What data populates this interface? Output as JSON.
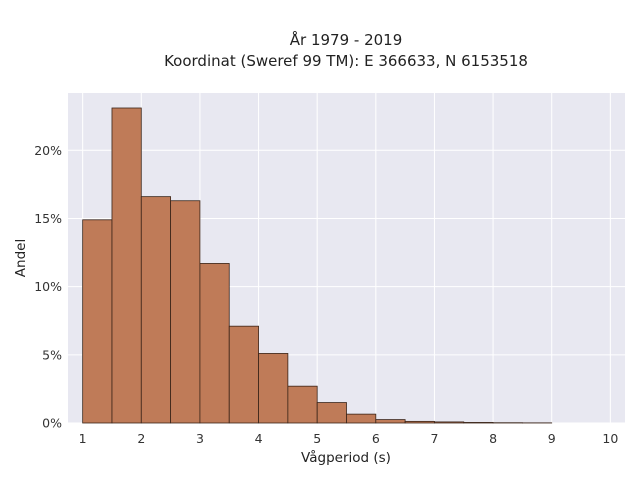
{
  "chart_data": {
    "type": "bar",
    "title_line1": "År 1979 - 2019",
    "title_line2": "Koordinat (Sweref 99 TM): E 366633, N 6153518",
    "xlabel": "Vågperiod (s)",
    "ylabel": "Andel",
    "xlim": [
      0.75,
      10.25
    ],
    "ylim": [
      0,
      0.242
    ],
    "x_ticks": [
      1,
      2,
      3,
      4,
      5,
      6,
      7,
      8,
      9,
      10
    ],
    "x_tick_labels": [
      "1",
      "2",
      "3",
      "4",
      "5",
      "6",
      "7",
      "8",
      "9",
      "10"
    ],
    "y_ticks": [
      0,
      0.05,
      0.1,
      0.15,
      0.2
    ],
    "y_tick_labels": [
      "0%",
      "5%",
      "10%",
      "15%",
      "20%"
    ],
    "grid": true,
    "bin_edges": [
      1,
      1.5,
      2,
      2.5,
      3,
      3.5,
      4,
      4.5,
      5,
      5.5,
      6,
      6.5,
      7,
      7.5,
      8,
      8.5,
      9
    ],
    "values": [
      0.149,
      0.231,
      0.166,
      0.163,
      0.117,
      0.071,
      0.051,
      0.027,
      0.015,
      0.0065,
      0.0025,
      0.0012,
      0.0008,
      0.0004,
      0.0002,
      0.0001
    ],
    "bar_color": "#bf7b58",
    "bar_edge_color": "#3a2418",
    "plot_bg": "#e8e8f1",
    "grid_color": "#ffffff"
  }
}
